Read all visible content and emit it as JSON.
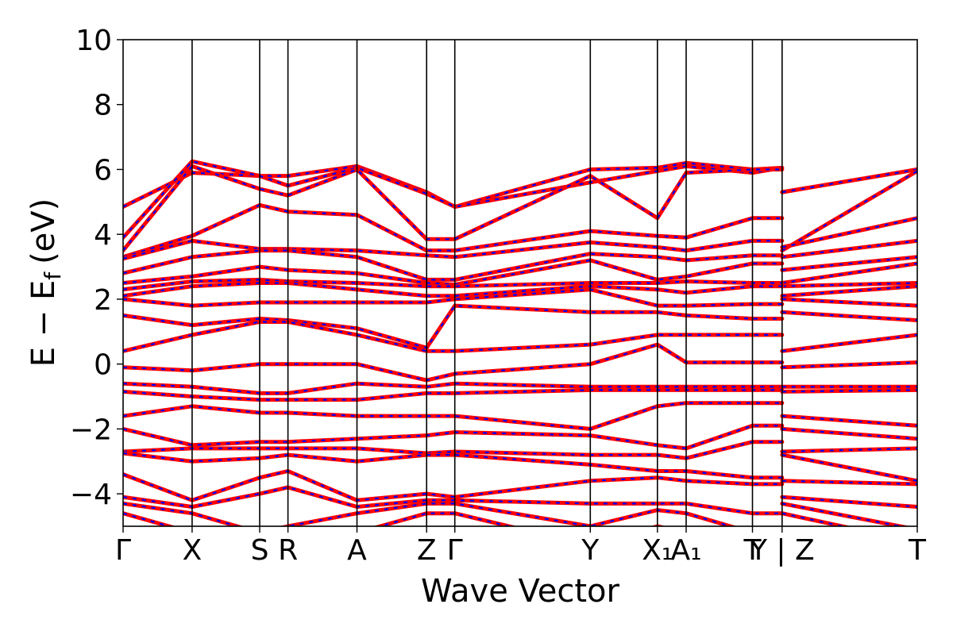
{
  "chart_data": {
    "type": "line",
    "xlabel": "Wave Vector",
    "ylabel": "E − E",
    "ylabel_subscript": "f",
    "ylabel_unit": "(eV)",
    "ylim": [
      -5,
      10
    ],
    "yticks": [
      -4,
      -2,
      0,
      2,
      4,
      6,
      8,
      10
    ],
    "ytick_labels": [
      "−4",
      "−2",
      "0",
      "2",
      "4",
      "6",
      "8",
      "10"
    ],
    "grid": false,
    "kpath_positions": [
      0,
      0.0869,
      0.172,
      0.2076,
      0.2945,
      0.3822,
      0.4177,
      0.5883,
      0.6728,
      0.709,
      0.7925,
      0.8298,
      0.8298,
      1.0
    ],
    "kpath_labels": [
      "Γ",
      "X",
      "S",
      "R",
      "A",
      "Z",
      "Γ",
      "Y",
      "X₁",
      "A₁",
      "T",
      "Y | Z",
      "T"
    ],
    "kpath_label_positions": [
      0,
      0.0869,
      0.172,
      0.2076,
      0.2945,
      0.3822,
      0.4177,
      0.5883,
      0.6728,
      0.709,
      0.7925,
      0.8298,
      1.0
    ],
    "discontinuity": 0.8298,
    "colors": {
      "band": "#ff0000",
      "band_overlay": "#0000ff"
    },
    "series": [
      {
        "values": [
          4.85,
          5.9,
          5.8,
          5.8,
          6.1,
          5.3,
          4.85,
          6.0,
          6.05,
          6.2,
          6.0,
          6.05,
          5.3,
          6.0
        ]
      },
      {
        "values": [
          3.9,
          6.25,
          5.8,
          5.5,
          6.05,
          5.25,
          4.85,
          5.6,
          5.95,
          6.1,
          5.9,
          6.05,
          5.3,
          6.0
        ]
      },
      {
        "values": [
          3.5,
          6.1,
          5.4,
          5.2,
          6.0,
          3.85,
          3.85,
          5.8,
          4.5,
          5.9,
          6.0,
          6.0,
          3.5,
          5.95
        ]
      },
      {
        "values": [
          3.3,
          3.95,
          4.9,
          4.7,
          4.6,
          3.5,
          3.5,
          4.1,
          3.95,
          3.9,
          4.5,
          4.5,
          3.6,
          4.5
        ]
      },
      {
        "values": [
          3.25,
          3.8,
          3.55,
          3.55,
          3.5,
          3.35,
          3.3,
          3.75,
          3.6,
          3.5,
          3.8,
          3.8,
          3.3,
          3.8
        ]
      },
      {
        "values": [
          2.8,
          3.3,
          3.5,
          3.5,
          3.3,
          2.6,
          2.6,
          3.4,
          3.3,
          3.2,
          3.35,
          3.35,
          2.9,
          3.3
        ]
      },
      {
        "values": [
          2.5,
          2.7,
          3.0,
          2.9,
          2.8,
          2.5,
          2.45,
          3.2,
          2.6,
          2.7,
          3.1,
          3.1,
          2.5,
          3.1
        ]
      },
      {
        "values": [
          2.3,
          2.55,
          2.6,
          2.55,
          2.5,
          2.4,
          2.4,
          2.5,
          2.5,
          2.55,
          2.5,
          2.5,
          2.4,
          2.5
        ]
      },
      {
        "values": [
          2.1,
          2.4,
          2.5,
          2.5,
          2.3,
          2.1,
          2.1,
          2.4,
          2.3,
          2.2,
          2.4,
          2.4,
          2.1,
          2.4
        ]
      },
      {
        "values": [
          2.0,
          1.8,
          1.9,
          1.9,
          1.9,
          1.9,
          2.0,
          2.3,
          1.8,
          1.8,
          1.85,
          1.85,
          2.0,
          1.8
        ]
      },
      {
        "values": [
          1.5,
          1.2,
          1.4,
          1.35,
          1.1,
          0.5,
          1.8,
          1.6,
          1.6,
          1.5,
          1.4,
          1.4,
          1.6,
          1.35
        ]
      },
      {
        "values": [
          0.4,
          0.9,
          1.3,
          1.3,
          0.9,
          0.4,
          0.4,
          0.6,
          0.9,
          0.9,
          0.9,
          0.9,
          0.4,
          0.9
        ]
      },
      {
        "values": [
          -0.1,
          -0.2,
          0.0,
          0.0,
          0.0,
          -0.5,
          -0.3,
          0.0,
          0.6,
          0.05,
          0.05,
          0.05,
          -0.1,
          0.05
        ]
      },
      {
        "values": [
          -0.6,
          -0.7,
          -0.9,
          -0.9,
          -0.6,
          -0.7,
          -0.6,
          -0.7,
          -0.7,
          -0.7,
          -0.7,
          -0.7,
          -0.7,
          -0.7
        ]
      },
      {
        "values": [
          -0.85,
          -1.0,
          -1.1,
          -1.1,
          -1.1,
          -0.9,
          -0.9,
          -0.8,
          -0.8,
          -0.8,
          -0.8,
          -0.8,
          -0.85,
          -0.8
        ]
      },
      {
        "values": [
          -1.6,
          -1.3,
          -1.5,
          -1.5,
          -1.6,
          -1.6,
          -1.6,
          -2.0,
          -1.3,
          -1.2,
          -1.2,
          -1.2,
          -1.6,
          -1.9
        ]
      },
      {
        "values": [
          -2.0,
          -2.5,
          -2.4,
          -2.4,
          -2.3,
          -2.2,
          -2.1,
          -2.2,
          -2.5,
          -2.6,
          -1.9,
          -1.9,
          -2.0,
          -2.3
        ]
      },
      {
        "values": [
          -2.7,
          -2.6,
          -2.6,
          -2.6,
          -2.6,
          -2.75,
          -2.7,
          -2.8,
          -2.8,
          -2.9,
          -2.4,
          -2.4,
          -2.7,
          -2.6
        ]
      },
      {
        "values": [
          -2.75,
          -3.0,
          -2.9,
          -2.8,
          -3.0,
          -2.8,
          -2.8,
          -3.1,
          -3.3,
          -3.3,
          -3.5,
          -3.5,
          -2.8,
          -3.6
        ]
      },
      {
        "values": [
          -3.4,
          -4.2,
          -3.5,
          -3.3,
          -4.2,
          -4.0,
          -4.1,
          -3.6,
          -3.5,
          -3.6,
          -3.7,
          -3.7,
          -3.6,
          -3.7
        ]
      },
      {
        "values": [
          -4.1,
          -4.4,
          -4.0,
          -3.8,
          -4.4,
          -4.2,
          -4.2,
          -4.3,
          -4.3,
          -4.3,
          -4.6,
          -4.6,
          -4.1,
          -4.4
        ]
      },
      {
        "values": [
          -4.3,
          -4.6,
          -5.2,
          -5.0,
          -4.6,
          -4.3,
          -4.3,
          -5.0,
          -4.5,
          -4.6,
          -5.2,
          -5.2,
          -4.3,
          -5.1
        ]
      },
      {
        "values": [
          -4.6,
          -5.2,
          -5.5,
          -5.5,
          -5.2,
          -4.6,
          -4.6,
          -5.6,
          -5.0,
          -5.2,
          -5.5,
          -5.5,
          -4.6,
          -5.5
        ]
      }
    ]
  }
}
